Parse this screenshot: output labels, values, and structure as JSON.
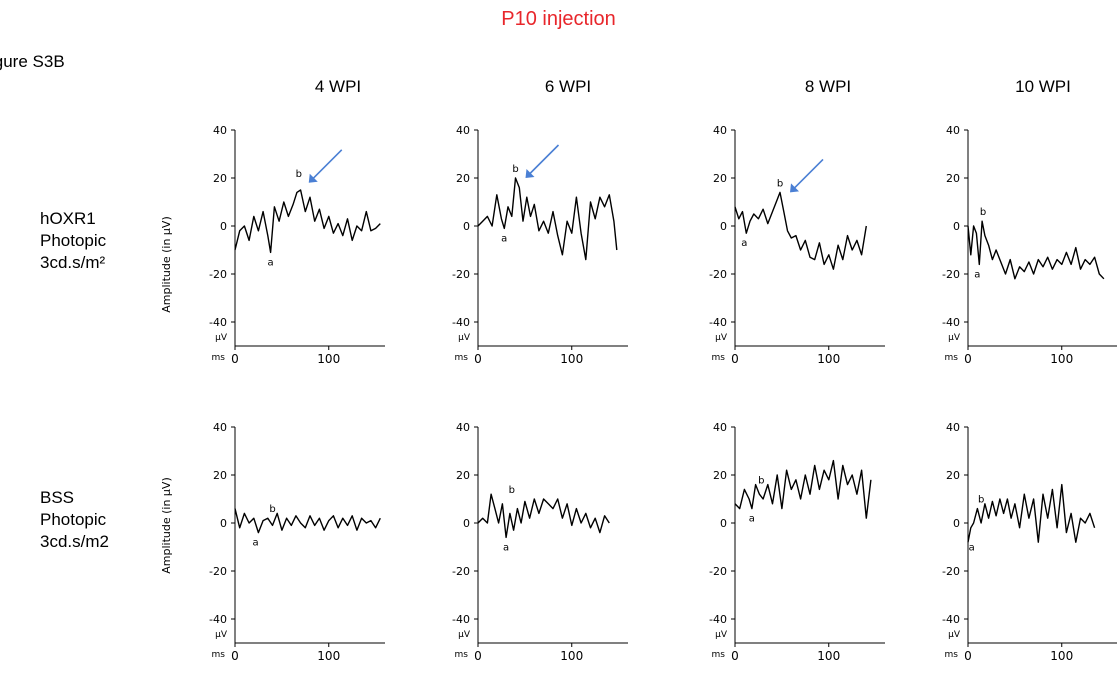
{
  "title": "P10 injection",
  "figure_label": "igure S3B",
  "columns": [
    "4 WPI",
    "6 WPI",
    "8 WPI",
    "10 WPI"
  ],
  "rows": [
    {
      "line1": "hOXR1",
      "line2": "Photopic",
      "line3": "3cd.s/m²"
    },
    {
      "line1": "BSS",
      "line2": "Photopic",
      "line3": "3cd.s/m2"
    }
  ],
  "ylabel": "Amplitude (in µV)",
  "y_unit": "µV",
  "x_unit": "ms",
  "colors": {
    "title": "#e8262b",
    "arrow": "#4a7fd4",
    "trace": "#000000"
  },
  "chart_data": {
    "type": "line",
    "xlim": [
      0,
      160
    ],
    "ylim": [
      -50,
      40
    ],
    "yticks": [
      40,
      20,
      0,
      -20,
      -40
    ],
    "xticks": [
      0,
      100
    ],
    "panels": [
      {
        "row": 0,
        "col": 0,
        "arrow": true,
        "a_label": "a",
        "a_point": [
          38,
          -11
        ],
        "b_label": "b",
        "b_point": [
          68,
          18
        ],
        "x": [
          0,
          5,
          10,
          15,
          20,
          25,
          30,
          35,
          38,
          42,
          47,
          52,
          57,
          62,
          66,
          70,
          75,
          80,
          85,
          90,
          95,
          100,
          105,
          110,
          115,
          120,
          125,
          130,
          135,
          140,
          145,
          150,
          155
        ],
        "y": [
          -10,
          -2,
          0,
          -6,
          4,
          -2,
          6,
          -4,
          -11,
          8,
          2,
          10,
          4,
          9,
          14,
          15,
          6,
          12,
          2,
          7,
          -1,
          4,
          -3,
          1,
          -4,
          3,
          -6,
          0,
          -2,
          6,
          -2,
          -1,
          1
        ]
      },
      {
        "row": 0,
        "col": 1,
        "arrow": true,
        "a_label": "a",
        "a_point": [
          28,
          -1
        ],
        "b_label": "b",
        "b_point": [
          40,
          20
        ],
        "x": [
          0,
          5,
          10,
          15,
          20,
          25,
          28,
          32,
          36,
          40,
          44,
          48,
          52,
          56,
          60,
          65,
          70,
          75,
          80,
          85,
          90,
          95,
          100,
          105,
          110,
          115,
          120,
          125,
          130,
          135,
          140,
          145,
          148
        ],
        "y": [
          0,
          2,
          4,
          0,
          13,
          3,
          -1,
          8,
          4,
          20,
          16,
          2,
          12,
          4,
          9,
          -2,
          2,
          -3,
          6,
          -4,
          -12,
          2,
          -3,
          12,
          -3,
          -14,
          10,
          3,
          12,
          8,
          13,
          2,
          -10
        ]
      },
      {
        "row": 0,
        "col": 2,
        "arrow": true,
        "a_label": "a",
        "a_point": [
          10,
          -3
        ],
        "b_label": "b",
        "b_point": [
          48,
          14
        ],
        "x": [
          0,
          4,
          8,
          12,
          16,
          20,
          25,
          30,
          35,
          40,
          45,
          48,
          52,
          56,
          60,
          65,
          70,
          75,
          80,
          85,
          90,
          95,
          100,
          105,
          110,
          115,
          120,
          125,
          130,
          135,
          140
        ],
        "y": [
          8,
          3,
          6,
          -3,
          2,
          5,
          3,
          7,
          1,
          6,
          11,
          14,
          6,
          -2,
          -5,
          -4,
          -10,
          -6,
          -13,
          -14,
          -7,
          -16,
          -12,
          -18,
          -8,
          -14,
          -4,
          -10,
          -6,
          -12,
          0
        ]
      },
      {
        "row": 0,
        "col": 3,
        "arrow": false,
        "a_label": "a",
        "a_point": [
          10,
          -16
        ],
        "b_label": "b",
        "b_point": [
          16,
          2
        ],
        "x": [
          0,
          3,
          6,
          9,
          12,
          15,
          18,
          22,
          26,
          30,
          35,
          40,
          45,
          50,
          55,
          60,
          65,
          70,
          75,
          80,
          85,
          90,
          95,
          100,
          105,
          110,
          115,
          120,
          125,
          130,
          135,
          140,
          145
        ],
        "y": [
          0,
          -12,
          0,
          -3,
          -16,
          2,
          -4,
          -8,
          -14,
          -10,
          -15,
          -20,
          -14,
          -22,
          -17,
          -19,
          -15,
          -20,
          -14,
          -17,
          -13,
          -18,
          -14,
          -16,
          -11,
          -16,
          -9,
          -18,
          -14,
          -16,
          -13,
          -20,
          -22
        ]
      },
      {
        "row": 1,
        "col": 0,
        "arrow": false,
        "a_label": "a",
        "a_point": [
          22,
          -4
        ],
        "b_label": "b",
        "b_point": [
          40,
          2
        ],
        "x": [
          0,
          5,
          10,
          15,
          20,
          25,
          30,
          35,
          40,
          45,
          50,
          55,
          60,
          65,
          70,
          75,
          80,
          85,
          90,
          95,
          100,
          105,
          110,
          115,
          120,
          125,
          130,
          135,
          140,
          145,
          150,
          155
        ],
        "y": [
          6,
          -2,
          4,
          0,
          2,
          -4,
          1,
          2,
          -1,
          4,
          -3,
          2,
          -1,
          3,
          0,
          -2,
          3,
          -1,
          2,
          -3,
          1,
          3,
          -2,
          2,
          -1,
          3,
          -3,
          2,
          0,
          1,
          -2,
          2
        ]
      },
      {
        "row": 1,
        "col": 1,
        "arrow": false,
        "a_label": "a",
        "a_point": [
          30,
          -6
        ],
        "b_label": "b",
        "b_point": [
          36,
          10
        ],
        "x": [
          0,
          5,
          10,
          14,
          18,
          22,
          26,
          30,
          34,
          38,
          42,
          46,
          50,
          55,
          60,
          65,
          70,
          75,
          80,
          85,
          90,
          95,
          100,
          105,
          110,
          115,
          120,
          125,
          130,
          135,
          140
        ],
        "y": [
          0,
          2,
          0,
          12,
          6,
          0,
          8,
          -6,
          4,
          -3,
          6,
          0,
          9,
          2,
          10,
          4,
          10,
          8,
          6,
          10,
          2,
          8,
          -1,
          6,
          0,
          4,
          -2,
          2,
          -4,
          3,
          0
        ]
      },
      {
        "row": 1,
        "col": 2,
        "arrow": false,
        "a_label": "a",
        "a_point": [
          18,
          6
        ],
        "b_label": "b",
        "b_point": [
          28,
          14
        ],
        "x": [
          0,
          5,
          10,
          15,
          18,
          22,
          26,
          30,
          35,
          40,
          45,
          50,
          55,
          60,
          65,
          70,
          75,
          80,
          85,
          90,
          95,
          100,
          105,
          110,
          115,
          120,
          125,
          130,
          135,
          140,
          145
        ],
        "y": [
          8,
          6,
          14,
          10,
          6,
          16,
          12,
          10,
          16,
          8,
          20,
          6,
          22,
          14,
          18,
          10,
          20,
          12,
          24,
          14,
          22,
          18,
          26,
          10,
          24,
          16,
          20,
          12,
          22,
          2,
          18
        ]
      },
      {
        "row": 1,
        "col": 3,
        "arrow": false,
        "a_label": "a",
        "a_point": [
          4,
          -6
        ],
        "b_label": "b",
        "b_point": [
          14,
          6
        ],
        "x": [
          0,
          3,
          6,
          10,
          14,
          18,
          22,
          26,
          30,
          34,
          38,
          42,
          46,
          50,
          55,
          60,
          65,
          70,
          75,
          80,
          85,
          90,
          95,
          100,
          105,
          110,
          115,
          120,
          125,
          130,
          135
        ],
        "y": [
          -8,
          -2,
          0,
          6,
          0,
          8,
          2,
          9,
          3,
          10,
          4,
          10,
          2,
          8,
          -2,
          12,
          2,
          10,
          -8,
          12,
          2,
          14,
          -2,
          16,
          -4,
          4,
          -8,
          2,
          0,
          4,
          -2
        ]
      }
    ]
  }
}
